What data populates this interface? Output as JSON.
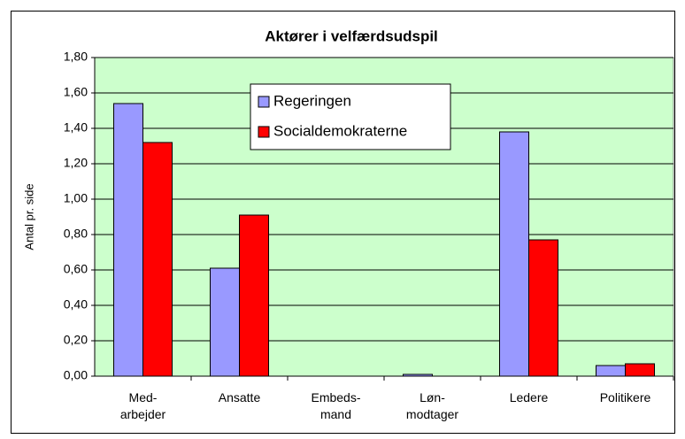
{
  "chart_data": {
    "type": "bar",
    "title": "Aktører i velfærdsudspil",
    "y_label": "Antal pr. side",
    "categories": [
      "Med-\narbejder",
      "Ansatte",
      "Embeds-\nmand",
      "Løn-\nmodtager",
      "Ledere",
      "Politikere"
    ],
    "series": [
      {
        "name": "Regeringen",
        "color": "#9999ff",
        "values": [
          1.54,
          0.61,
          0,
          0.01,
          1.38,
          0.06
        ]
      },
      {
        "name": "Socialdemokraterne",
        "color": "#ff0000",
        "values": [
          1.32,
          0.91,
          0,
          0,
          0.77,
          0.07
        ]
      }
    ],
    "ylim": [
      0,
      1.8
    ],
    "yticks": [
      {
        "value": 0,
        "label": "0,00"
      },
      {
        "value": 0.2,
        "label": "0,20"
      },
      {
        "value": 0.4,
        "label": "0,40"
      },
      {
        "value": 0.6,
        "label": "0,60"
      },
      {
        "value": 0.8,
        "label": "0,80"
      },
      {
        "value": 1.0,
        "label": "1,00"
      },
      {
        "value": 1.2,
        "label": "1,20"
      },
      {
        "value": 1.4,
        "label": "1,40"
      },
      {
        "value": 1.6,
        "label": "1,60"
      },
      {
        "value": 1.8,
        "label": "1,80"
      }
    ],
    "grid": true,
    "plot_background": "#ccffcc"
  }
}
